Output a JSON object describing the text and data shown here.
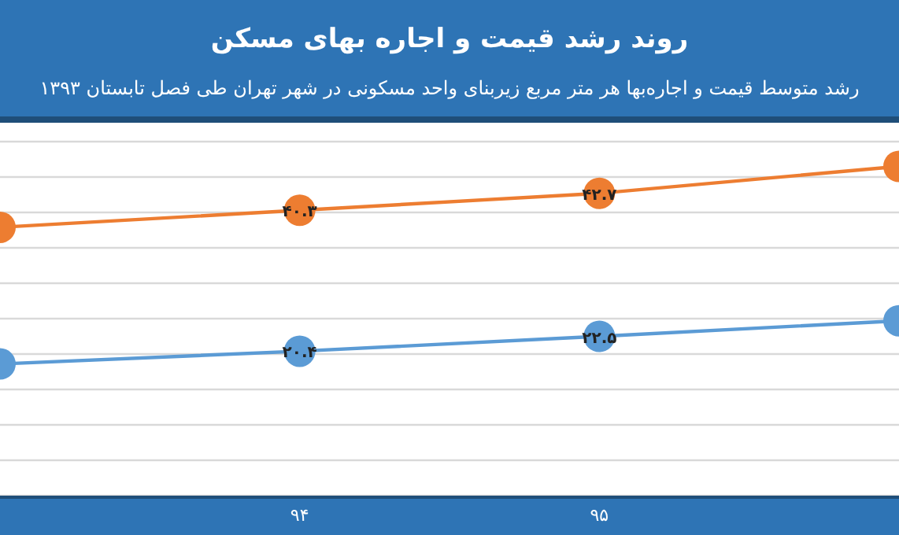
{
  "chart_data": {
    "type": "line",
    "title": "روند رشد قیمت و اجاره بهای مسکن",
    "subtitle": "رشد متوسط قیمت و اجاره‌بها هر متر مربع زیربنای واحد مسکونی در شهر تهران طی فصل تابستان ۱۳۹۳",
    "categories": [
      null,
      "۹۴",
      "۹۵",
      null
    ],
    "series": [
      {
        "color": "#ed7d31",
        "values": [
          37.9,
          40.3,
          42.7,
          46.5
        ],
        "value_labels": [
          null,
          "۴۰.۳",
          "۴۲.۷",
          null
        ]
      },
      {
        "color": "#5b9bd5",
        "values": [
          18.6,
          20.4,
          22.5,
          24.7
        ],
        "value_labels": [
          null,
          "۲۰.۴",
          "۲۲.۵",
          null
        ]
      }
    ],
    "ylim": [
      0,
      50
    ],
    "yticks": [
      {
        "value": 0,
        "label": null
      },
      {
        "value": 5,
        "label": null
      },
      {
        "value": 10,
        "label": null
      },
      {
        "value": 15,
        "label": null
      },
      {
        "value": 20,
        "label": null
      },
      {
        "value": 25,
        "label": null
      },
      {
        "value": 30,
        "label": null
      },
      {
        "value": 35,
        "label": null
      },
      {
        "value": 40,
        "label": null
      },
      {
        "value": 45,
        "label": null
      },
      {
        "value": 50,
        "label": null
      }
    ],
    "grid": "y",
    "marker": "circle",
    "line_style": "solid"
  }
}
